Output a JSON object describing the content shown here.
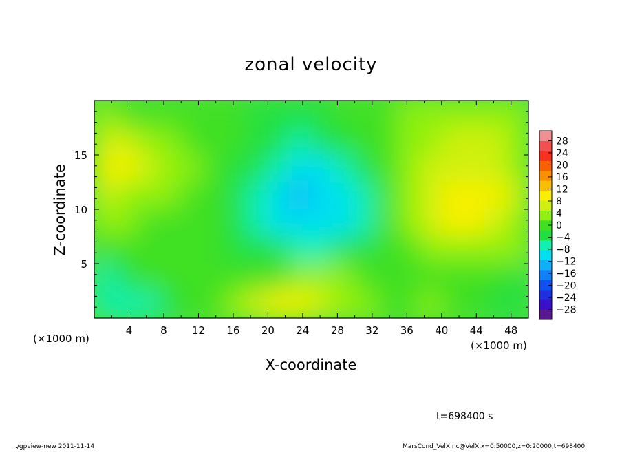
{
  "chart_data": {
    "type": "heatmap",
    "title": "zonal velocity",
    "xlabel": "X-coordinate",
    "ylabel": "Z-coordinate",
    "x_unit": "(×1000 m)",
    "y_unit": "(×1000 m)",
    "xlim": [
      0,
      50
    ],
    "ylim": [
      0,
      20
    ],
    "x_ticks": [
      "4",
      "8",
      "12",
      "16",
      "20",
      "24",
      "28",
      "32",
      "36",
      "40",
      "44",
      "48"
    ],
    "y_ticks": [
      "5",
      "10",
      "15"
    ],
    "colorbar": {
      "ticks": [
        "28",
        "24",
        "20",
        "16",
        "12",
        "8",
        "4",
        "0",
        "−4",
        "−8",
        "−12",
        "−16",
        "−20",
        "−24",
        "−28"
      ],
      "range": [
        -30,
        30
      ],
      "colors": [
        "#5a1890",
        "#3a10c8",
        "#2030e0",
        "#1050f0",
        "#1080f8",
        "#10b0f8",
        "#00e0f0",
        "#10f0b0",
        "#20e040",
        "#40e020",
        "#90f010",
        "#d0f010",
        "#f8f000",
        "#f8c000",
        "#f89000",
        "#f86000",
        "#f83020",
        "#f05050",
        "#f09090"
      ]
    },
    "z_grid_rows_top_to_bottom": [
      [
        2,
        1,
        0,
        0,
        0,
        0,
        -1,
        -2,
        -3,
        -3,
        -2,
        -1,
        0,
        1,
        2,
        3,
        4,
        4,
        3,
        2
      ],
      [
        6,
        5,
        3,
        2,
        1,
        0,
        -1,
        -3,
        -4,
        -5,
        -4,
        -3,
        -1,
        1,
        3,
        4,
        5,
        6,
        5,
        4
      ],
      [
        9,
        8,
        5,
        3,
        2,
        0,
        -2,
        -4,
        -7,
        -9,
        -8,
        -6,
        -3,
        0,
        3,
        5,
        7,
        7,
        6,
        4
      ],
      [
        5,
        4,
        3,
        2,
        1,
        -1,
        -3,
        -5,
        -9,
        -12,
        -11,
        -9,
        -5,
        -1,
        3,
        7,
        9,
        10,
        8,
        5
      ],
      [
        2,
        2,
        1,
        1,
        0,
        -1,
        -3,
        -5,
        -8,
        -10,
        -10,
        -8,
        -5,
        -1,
        3,
        6,
        8,
        8,
        6,
        4
      ],
      [
        -1,
        0,
        0,
        1,
        0,
        0,
        -2,
        -3,
        -4,
        -5,
        -5,
        -4,
        -3,
        -1,
        1,
        3,
        4,
        4,
        3,
        2
      ],
      [
        -5,
        -3,
        -1,
        0,
        1,
        0,
        -1,
        -1,
        0,
        2,
        3,
        2,
        0,
        -1,
        0,
        1,
        1,
        1,
        -1,
        -2
      ],
      [
        -6,
        -7,
        -5,
        -2,
        0,
        1,
        3,
        5,
        8,
        9,
        7,
        4,
        2,
        0,
        1,
        2,
        1,
        0,
        -2,
        -4
      ]
    ]
  },
  "footer": {
    "time_label": "t=698400 s",
    "left_note": "./gpview-new  2011-11-14",
    "right_note": "MarsCond_VelX.nc@VelX,x=0:50000,z=0:20000,t=698400"
  }
}
